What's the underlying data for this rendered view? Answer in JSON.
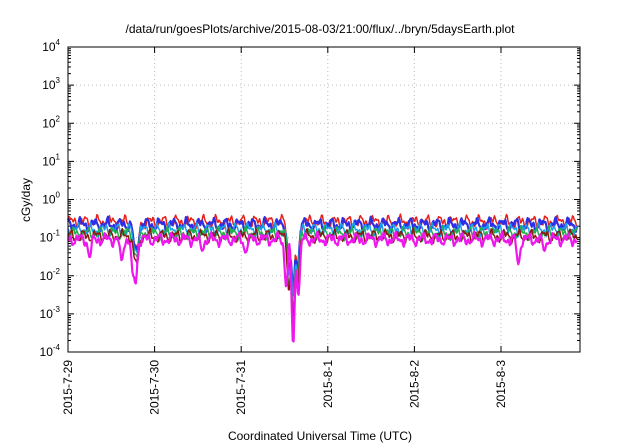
{
  "chart_data": {
    "type": "line",
    "title": "/data/run/goesPlots/archive/2015-08-03/21:00/flux/../bryn/5daysEarth.plot",
    "xlabel": "Coordinated Universal Time (UTC)",
    "ylabel": "cGy/day",
    "yscale": "log",
    "ylim": [
      0.0001,
      10000
    ],
    "xlim": [
      "2015-07-29",
      "2015-08-03 21:00"
    ],
    "y_ticks": [
      {
        "base": "10",
        "exp": "-4"
      },
      {
        "base": "10",
        "exp": "-3"
      },
      {
        "base": "10",
        "exp": "-2"
      },
      {
        "base": "10",
        "exp": "-1"
      },
      {
        "base": "10",
        "exp": "0"
      },
      {
        "base": "10",
        "exp": "1"
      },
      {
        "base": "10",
        "exp": "2"
      },
      {
        "base": "10",
        "exp": "3"
      },
      {
        "base": "10",
        "exp": "4"
      }
    ],
    "x_ticks": [
      "2015-7-29",
      "2015-7-30",
      "2015-7-31",
      "2015-8-1",
      "2015-8-2",
      "2015-8-3"
    ],
    "grid": true,
    "series": [
      {
        "color": "#e8201a",
        "base": 0.26,
        "dips": [
          {
            "day": 0.77,
            "value": 0.07
          },
          {
            "day": 0.8,
            "value": 0.05
          },
          {
            "day": 2.55,
            "value": 0.015
          },
          {
            "day": 2.6,
            "value": 0.004
          },
          {
            "day": 2.65,
            "value": 0.015
          }
        ]
      },
      {
        "color": "#2e2ee6",
        "base": 0.22,
        "dips": [
          {
            "day": 0.77,
            "value": 0.06
          },
          {
            "day": 0.8,
            "value": 0.045
          },
          {
            "day": 2.55,
            "value": 0.012
          },
          {
            "day": 2.6,
            "value": 0.003
          },
          {
            "day": 2.65,
            "value": 0.012
          }
        ]
      },
      {
        "color": "#1aa0ee",
        "base": 0.16,
        "dips": [
          {
            "day": 0.77,
            "value": 0.05
          },
          {
            "day": 0.8,
            "value": 0.04
          },
          {
            "day": 2.55,
            "value": 0.01
          },
          {
            "day": 2.6,
            "value": 0.0025
          },
          {
            "day": 2.65,
            "value": 0.01
          }
        ]
      },
      {
        "color": "#20b048",
        "base": 0.13,
        "dips": [
          {
            "day": 0.77,
            "value": 0.04
          },
          {
            "day": 0.8,
            "value": 0.03
          },
          {
            "day": 2.55,
            "value": 0.006
          },
          {
            "day": 2.6,
            "value": 0.001
          },
          {
            "day": 2.65,
            "value": 0.006
          }
        ]
      },
      {
        "color": "#8a1a10",
        "base": 0.11,
        "dips": [
          {
            "day": 0.77,
            "value": 0.03
          },
          {
            "day": 0.8,
            "value": 0.02
          },
          {
            "day": 2.55,
            "value": 0.004
          },
          {
            "day": 2.6,
            "value": 0.0006
          },
          {
            "day": 2.65,
            "value": 0.004
          }
        ]
      },
      {
        "color": "#ee18ee",
        "base": 0.09,
        "dips": [
          {
            "day": 0.25,
            "value": 0.03
          },
          {
            "day": 0.62,
            "value": 0.025
          },
          {
            "day": 0.75,
            "value": 0.012
          },
          {
            "day": 0.78,
            "value": 0.006
          },
          {
            "day": 1.55,
            "value": 0.045
          },
          {
            "day": 2.05,
            "value": 0.04
          },
          {
            "day": 2.52,
            "value": 0.005
          },
          {
            "day": 2.6,
            "value": 0.00015
          },
          {
            "day": 2.66,
            "value": 0.003
          },
          {
            "day": 5.2,
            "value": 0.02
          },
          {
            "day": 5.5,
            "value": 0.045
          }
        ]
      }
    ]
  }
}
